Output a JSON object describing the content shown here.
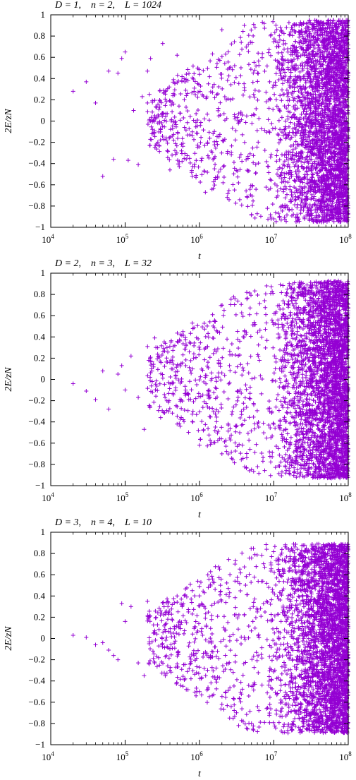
{
  "figure": {
    "marker": "+",
    "marker_color": "#9400D3"
  },
  "chart_data": [
    {
      "type": "scatter",
      "title": "D = 1,    n = 2,    L = 1024",
      "xlabel": "t",
      "ylabel": "2E/zN",
      "xscale": "log",
      "xlim": [
        10000,
        100000000
      ],
      "ylim": [
        -1,
        1
      ],
      "xticks": [
        10000,
        100000,
        1000000,
        10000000,
        100000000
      ],
      "xtick_labels": [
        [
          "10",
          "4"
        ],
        [
          "10",
          "5"
        ],
        [
          "10",
          "6"
        ],
        [
          "10",
          "7"
        ],
        [
          "10",
          "8"
        ]
      ],
      "yticks": [
        -1,
        -0.8,
        -0.6,
        -0.4,
        -0.2,
        0,
        0.2,
        0.4,
        0.6,
        0.8,
        1
      ],
      "ytick_labels": [
        "−1",
        "−0.8",
        "−0.6",
        "−0.4",
        "−0.2",
        "0",
        "0.2",
        "0.4",
        "0.6",
        "0.8",
        "1"
      ],
      "series": [
        {
          "points": [
            [
              20000,
              0.28
            ],
            [
              30000,
              0.37
            ],
            [
              40000,
              0.17
            ],
            [
              50000,
              -0.52
            ],
            [
              60000,
              0.47
            ],
            [
              70000,
              -0.36
            ],
            [
              80000,
              0.45
            ],
            [
              90000,
              0.59
            ],
            [
              100000,
              0.65
            ],
            [
              110000,
              -0.37
            ],
            [
              130000,
              0.1
            ],
            [
              150000,
              -0.41
            ],
            [
              170000,
              0.23
            ],
            [
              200000,
              0.47
            ],
            [
              220000,
              0.59
            ],
            [
              250000,
              0.05
            ],
            [
              300000,
              -0.08
            ],
            [
              320000,
              0.73
            ],
            [
              350000,
              0.28
            ],
            [
              400000,
              -0.46
            ],
            [
              450000,
              0.16
            ],
            [
              500000,
              0.62
            ],
            [
              600000,
              -0.21
            ],
            [
              700000,
              0.38
            ],
            [
              800000,
              -0.52
            ],
            [
              900000,
              0.07
            ],
            [
              1000000,
              0.44
            ],
            [
              1200000,
              -0.67
            ],
            [
              1500000,
              0.27
            ],
            [
              2000000,
              0.86
            ],
            [
              2500000,
              -0.74
            ],
            [
              3000000,
              0.02
            ],
            [
              4000000,
              0.9
            ],
            [
              5000000,
              -0.88
            ],
            [
              7000000,
              0.93
            ],
            [
              10000000,
              -0.92
            ]
          ],
          "dense_region": {
            "x_start": 5000000,
            "x_end": 100000000,
            "y_min": -0.95,
            "y_max": 0.95
          }
        }
      ]
    },
    {
      "type": "scatter",
      "title": "D = 2,    n = 3,    L = 32",
      "xlabel": "t",
      "ylabel": "2E/zN",
      "xscale": "log",
      "xlim": [
        10000,
        100000000
      ],
      "ylim": [
        -1,
        1
      ],
      "xticks": [
        10000,
        100000,
        1000000,
        10000000,
        100000000
      ],
      "xtick_labels": [
        [
          "10",
          "4"
        ],
        [
          "10",
          "5"
        ],
        [
          "10",
          "6"
        ],
        [
          "10",
          "7"
        ],
        [
          "10",
          "8"
        ]
      ],
      "yticks": [
        -1,
        -0.8,
        -0.6,
        -0.4,
        -0.2,
        0,
        0.2,
        0.4,
        0.6,
        0.8,
        1
      ],
      "ytick_labels": [
        "−1",
        "−0.8",
        "−0.6",
        "−0.4",
        "−0.2",
        "0",
        "0.2",
        "0.4",
        "0.6",
        "0.8",
        "1"
      ],
      "series": [
        {
          "points": [
            [
              20000,
              -0.04
            ],
            [
              30000,
              -0.11
            ],
            [
              40000,
              -0.19
            ],
            [
              50000,
              0.08
            ],
            [
              60000,
              -0.28
            ],
            [
              80000,
              0.05
            ],
            [
              90000,
              0.13
            ],
            [
              100000,
              -0.1
            ],
            [
              120000,
              0.22
            ],
            [
              150000,
              -0.17
            ],
            [
              180000,
              -0.47
            ],
            [
              200000,
              0.31
            ],
            [
              250000,
              0.39
            ],
            [
              300000,
              -0.36
            ],
            [
              400000,
              0.16
            ],
            [
              500000,
              -0.42
            ],
            [
              600000,
              0.45
            ],
            [
              800000,
              0.53
            ],
            [
              1000000,
              -0.62
            ],
            [
              1500000,
              0.61
            ],
            [
              2000000,
              -0.7
            ],
            [
              3000000,
              0.76
            ],
            [
              5000000,
              -0.85
            ],
            [
              8000000,
              0.88
            ]
          ],
          "dense_region": {
            "x_start": 5000000,
            "x_end": 100000000,
            "y_min": -0.93,
            "y_max": 0.93
          }
        }
      ]
    },
    {
      "type": "scatter",
      "title": "D = 3,    n = 4,    L = 10",
      "xlabel": "t",
      "ylabel": "2E/zN",
      "xscale": "log",
      "xlim": [
        10000,
        100000000
      ],
      "ylim": [
        -1,
        1
      ],
      "xticks": [
        10000,
        100000,
        1000000,
        10000000,
        100000000
      ],
      "xtick_labels": [
        [
          "10",
          "4"
        ],
        [
          "10",
          "5"
        ],
        [
          "10",
          "6"
        ],
        [
          "10",
          "7"
        ],
        [
          "10",
          "8"
        ]
      ],
      "yticks": [
        -1,
        -0.8,
        -0.6,
        -0.4,
        -0.2,
        0,
        0.2,
        0.4,
        0.6,
        0.8,
        1
      ],
      "ytick_labels": [
        "−1",
        "−0.8",
        "−0.6",
        "−0.4",
        "−0.2",
        "0",
        "0.2",
        "0.4",
        "0.6",
        "0.8",
        "1"
      ],
      "series": [
        {
          "points": [
            [
              20000,
              0.03
            ],
            [
              30000,
              0.01
            ],
            [
              40000,
              -0.06
            ],
            [
              50000,
              -0.04
            ],
            [
              60000,
              -0.11
            ],
            [
              70000,
              -0.16
            ],
            [
              80000,
              -0.2
            ],
            [
              90000,
              0.33
            ],
            [
              100000,
              0.16
            ],
            [
              120000,
              0.3
            ],
            [
              150000,
              -0.23
            ],
            [
              180000,
              -0.35
            ],
            [
              200000,
              0.35
            ],
            [
              250000,
              -0.23
            ],
            [
              300000,
              0.26
            ],
            [
              400000,
              -0.3
            ],
            [
              500000,
              0.4
            ],
            [
              600000,
              -0.45
            ],
            [
              800000,
              0.45
            ],
            [
              1000000,
              -0.5
            ],
            [
              1500000,
              0.56
            ],
            [
              2000000,
              -0.62
            ],
            [
              3000000,
              0.7
            ],
            [
              5000000,
              -0.8
            ],
            [
              8000000,
              0.84
            ]
          ],
          "dense_region": {
            "x_start": 5000000,
            "x_end": 100000000,
            "y_min": -0.89,
            "y_max": 0.89
          }
        }
      ]
    }
  ]
}
